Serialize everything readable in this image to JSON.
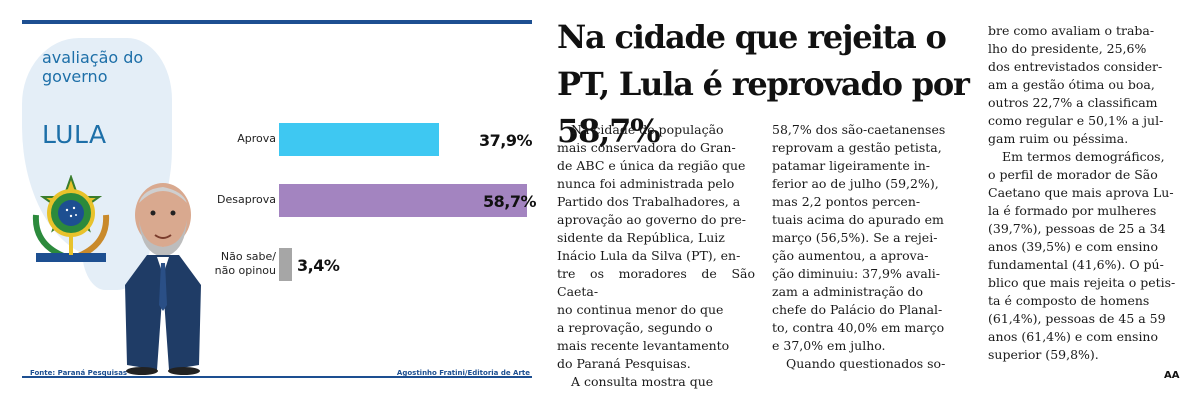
{
  "infographic": {
    "title": "avaliação do governo",
    "subject": "LULA",
    "source": "Fonte: Paraná Pesquisas",
    "credit": "Agostinho Fratini/Editoria de Arte",
    "colors": {
      "accent": "#1d6fa8",
      "rule": "#1d4f91",
      "aprova": "#3ec8f2",
      "desaprova": "#a384c0",
      "nao_sabe": "#a6a6a6"
    }
  },
  "chart_data": {
    "type": "bar",
    "orientation": "horizontal",
    "title": "avaliação do governo LULA",
    "categories": [
      "Aprova",
      "Desaprova",
      "Não sabe/ não opinou"
    ],
    "values": [
      37.9,
      58.7,
      3.4
    ],
    "value_labels": [
      "37,9%",
      "58,7%",
      "3,4%"
    ],
    "unit": "%",
    "xlim": [
      0,
      100
    ]
  },
  "article": {
    "headline": "Na cidade que rejeita o PT, Lula é reprovado por 58,7%",
    "col1_p1": "Na cidade de população\nmais conservadora do Gran-\nde ABC e única da região que\nnunca foi administrada pelo\nPartido dos Trabalhadores, a\naprovação ao governo do pre-\nsidente da República, Luiz\nInácio Lula da Silva (PT), en-\ntre os moradores de São Caeta-\nno continua menor do que\na reprovação, segundo o\nmais recente levantamento\ndo Paraná Pesquisas.",
    "col1_p2": "A consulta mostra que",
    "col2_p1": "58,7% dos são-caetanenses\nreprovam a gestão petista,\npatamar ligeiramente in-\nferior ao de julho (59,2%),\nmas 2,2 pontos percen-\ntuais acima do apurado em\nmarço (56,5%). Se a rejei-\nção aumentou, a aprova-\nção diminuiu: 37,9% avali-\nzam a administração do\nchefe do Palácio do Planal-\nto, contra 40,0% em março\ne 37,0% em julho.",
    "col2_p2": "Quando questionados so-",
    "col3_p1": "bre como avaliam o traba-\nlho do presidente, 25,6%\ndos entrevistados consider-\nam a gestão ótima ou boa,\noutros 22,7% a classificam\ncomo regular e 50,1% a jul-\ngam ruim ou péssima.",
    "col3_p2": "Em termos demográficos,\no perfil de morador de São\nCaetano que mais aprova Lu-\nla é formado por mulheres\n(39,7%), pessoas de 25 a 34\nanos (39,5%) e com ensino\nfundamental (41,6%). O pú-\nblico que mais rejeita o petis-\nta é composto de homens\n(61,4%), pessoas de 45 a 59\nanos (61,4%) e com ensino\nsuperior (59,8%).",
    "signature": "AA"
  }
}
